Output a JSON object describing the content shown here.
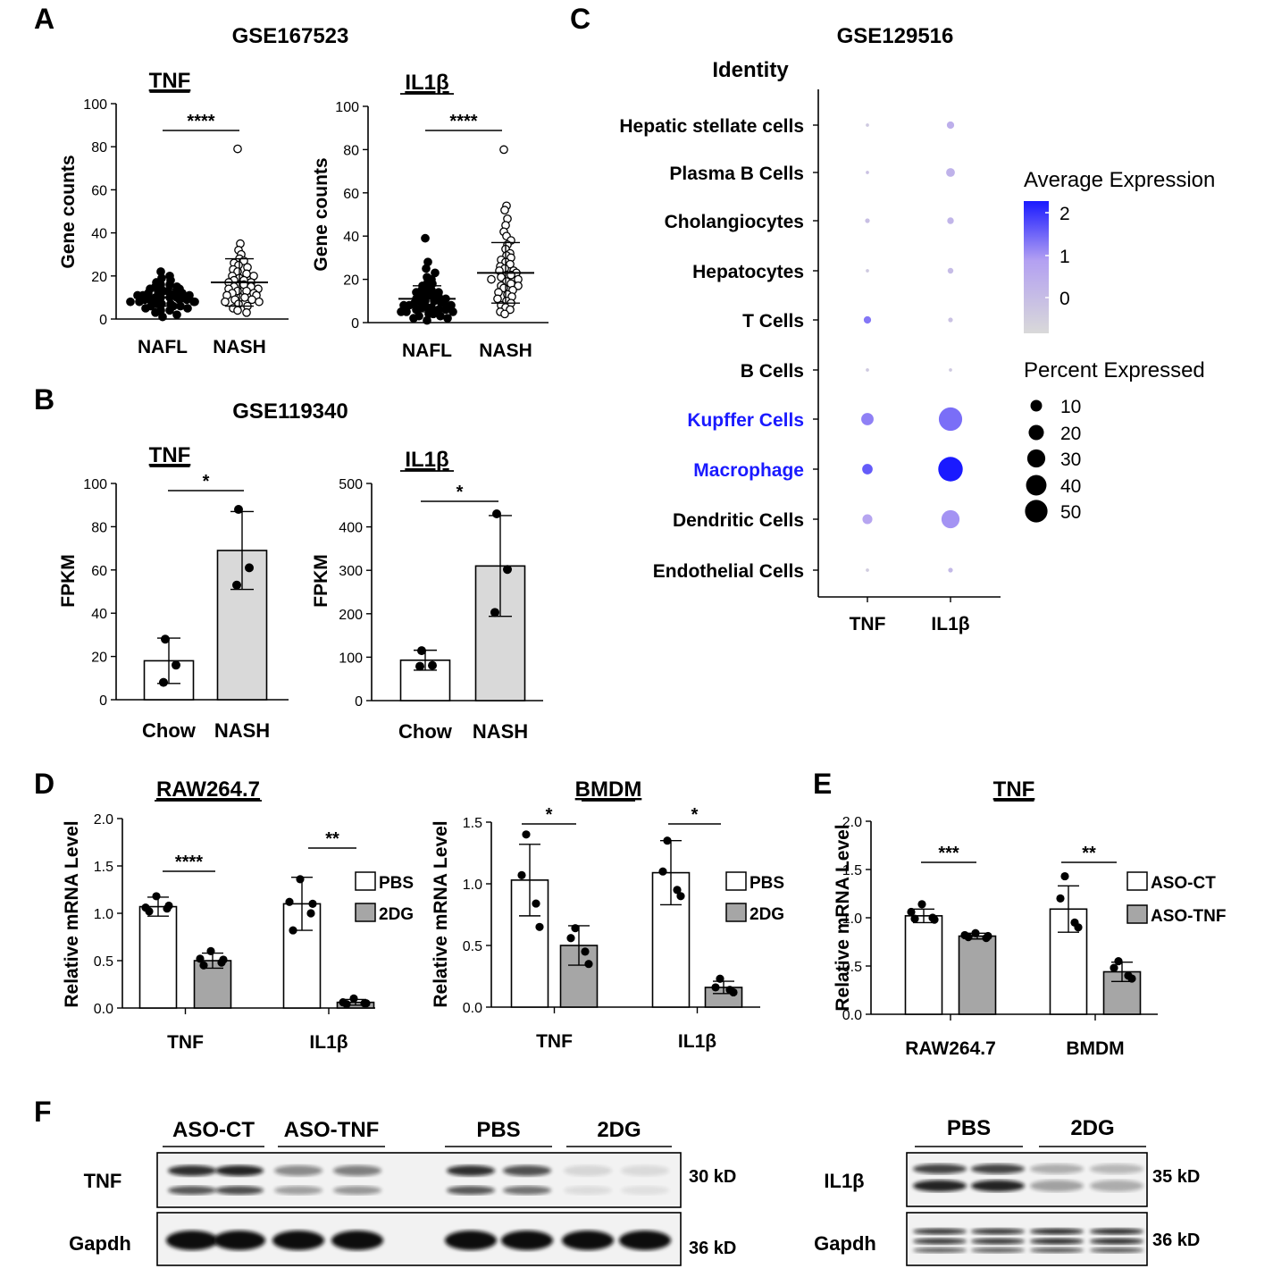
{
  "colors": {
    "bar_light": "#ffffff",
    "bar_gray": "#a6a6a6",
    "bar_gray_light": "#d9d9d9",
    "highlight_label": "#1a1aff",
    "dot_gradient": [
      "#d9d9d9",
      "#b3a0f2",
      "#1a1aff"
    ]
  },
  "panel_letters": [
    "A",
    "B",
    "C",
    "D",
    "E",
    "F"
  ],
  "chart_data": [
    {
      "id": "A-TNF",
      "panel": "A",
      "type": "scatter",
      "dataset": "GSE167523",
      "title": "TNF",
      "ylabel": "Gene counts",
      "ylim": [
        0,
        100
      ],
      "yticks": [
        "0",
        "20",
        "40",
        "60",
        "80",
        "100"
      ],
      "categories": [
        "NAFL",
        "NASH"
      ],
      "groups": [
        {
          "name": "NAFL",
          "filled": true,
          "mean": 10,
          "sd": 4,
          "points": [
            22,
            20,
            19,
            18,
            17,
            16,
            16,
            15,
            15,
            14,
            14,
            13,
            13,
            13,
            12,
            12,
            12,
            11,
            11,
            11,
            10,
            10,
            10,
            10,
            9,
            9,
            9,
            9,
            8,
            8,
            8,
            8,
            7,
            7,
            7,
            6,
            6,
            6,
            5,
            5,
            4,
            4,
            3,
            2,
            1
          ]
        },
        {
          "name": "NASH",
          "filled": false,
          "mean": 17,
          "sd": 11,
          "points": [
            79,
            35,
            32,
            30,
            28,
            27,
            26,
            25,
            24,
            23,
            22,
            21,
            20,
            20,
            19,
            18,
            18,
            17,
            17,
            16,
            16,
            15,
            15,
            14,
            14,
            13,
            13,
            12,
            12,
            11,
            11,
            10,
            10,
            9,
            9,
            8,
            8,
            7,
            6,
            5,
            4,
            3
          ]
        }
      ],
      "significance": "****"
    },
    {
      "id": "A-IL1B",
      "panel": "A",
      "type": "scatter",
      "title": "IL1β",
      "ylabel": "Gene counts",
      "ylim": [
        0,
        100
      ],
      "yticks": [
        "0",
        "20",
        "40",
        "60",
        "80",
        "100"
      ],
      "categories": [
        "NAFL",
        "NASH"
      ],
      "groups": [
        {
          "name": "NAFL",
          "filled": true,
          "mean": 11,
          "sd": 6,
          "points": [
            39,
            28,
            25,
            23,
            21,
            20,
            19,
            18,
            17,
            16,
            15,
            15,
            14,
            14,
            13,
            13,
            12,
            12,
            11,
            11,
            10,
            10,
            10,
            9,
            9,
            9,
            8,
            8,
            8,
            7,
            7,
            7,
            6,
            6,
            6,
            5,
            5,
            5,
            4,
            4,
            3,
            3,
            2,
            2,
            1
          ]
        },
        {
          "name": "NASH",
          "filled": false,
          "mean": 23,
          "sd": 14,
          "points": [
            80,
            54,
            52,
            48,
            45,
            42,
            40,
            38,
            36,
            34,
            32,
            31,
            30,
            29,
            28,
            27,
            26,
            25,
            24,
            24,
            23,
            22,
            22,
            21,
            20,
            20,
            19,
            18,
            17,
            17,
            16,
            15,
            14,
            13,
            12,
            11,
            10,
            9,
            8,
            7,
            6,
            5,
            4
          ]
        }
      ],
      "significance": "****"
    },
    {
      "id": "B-TNF",
      "panel": "B",
      "type": "bar",
      "dataset": "GSE119340",
      "title": "TNF",
      "ylabel": "FPKM",
      "ylim": [
        0,
        100
      ],
      "yticks": [
        "0",
        "20",
        "40",
        "60",
        "80",
        "100"
      ],
      "categories": [
        "Chow",
        "NASH"
      ],
      "values": [
        18,
        69
      ],
      "sd": [
        10.5,
        18
      ],
      "points": [
        [
          28,
          16,
          8
        ],
        [
          88,
          61,
          53
        ]
      ],
      "fills": [
        "#ffffff",
        "#d9d9d9"
      ],
      "significance": "*"
    },
    {
      "id": "B-IL1B",
      "panel": "B",
      "type": "bar",
      "title": "IL1β",
      "ylabel": "FPKM",
      "ylim": [
        0,
        500
      ],
      "yticks": [
        "0",
        "100",
        "200",
        "300",
        "400",
        "500"
      ],
      "categories": [
        "Chow",
        "NASH"
      ],
      "values": [
        93,
        310
      ],
      "sd": [
        23,
        116
      ],
      "points": [
        [
          115,
          81,
          79
        ],
        [
          430,
          302,
          203
        ]
      ],
      "fills": [
        "#ffffff",
        "#d9d9d9"
      ],
      "significance": "*"
    },
    {
      "id": "C",
      "panel": "C",
      "type": "dot",
      "dataset": "GSE129516",
      "ylabel": "Identity",
      "categories": [
        "TNF",
        "IL1β"
      ],
      "cell_types": [
        "Hepatic stellate cells",
        "Plasma B Cells",
        "Cholangiocytes",
        "Hepatocytes",
        "T Cells",
        "B Cells",
        "Kupffer Cells",
        "Macrophage",
        "Dendritic Cells",
        "Endothelial Cells"
      ],
      "highlighted": [
        "Kupffer Cells",
        "Macrophage"
      ],
      "avg_expression": [
        [
          -0.5,
          0.3
        ],
        [
          -0.3,
          0.2
        ],
        [
          -0.2,
          0.1
        ],
        [
          -0.5,
          -0.1
        ],
        [
          1.2,
          -0.3
        ],
        [
          -0.5,
          -0.5
        ],
        [
          1.1,
          1.3
        ],
        [
          1.5,
          2.2
        ],
        [
          0.6,
          0.9
        ],
        [
          -0.6,
          0.0
        ]
      ],
      "pct_expressed": [
        [
          1,
          5
        ],
        [
          1,
          7
        ],
        [
          2,
          4
        ],
        [
          1,
          3
        ],
        [
          5,
          2
        ],
        [
          1,
          1
        ],
        [
          14,
          50
        ],
        [
          10,
          55
        ],
        [
          9,
          30
        ],
        [
          1,
          2
        ]
      ],
      "color_legend_title": "Average Expression",
      "color_ticks": [
        "2",
        "1",
        "0"
      ],
      "color_range": [
        -1,
        2.2
      ],
      "size_legend_title": "Percent Expressed",
      "size_legend": [
        "10",
        "20",
        "30",
        "40",
        "50"
      ]
    },
    {
      "id": "D-RAW",
      "panel": "D",
      "type": "bar",
      "title": "RAW264.7",
      "ylabel": "Relative mRNA Level",
      "ylim": [
        0,
        2.0
      ],
      "yticks": [
        "0.0",
        "0.5",
        "1.0",
        "1.5",
        "2.0"
      ],
      "categories": [
        "TNF",
        "IL1β"
      ],
      "series": [
        {
          "name": "PBS",
          "fill": "#ffffff"
        },
        {
          "name": "2DG",
          "fill": "#a6a6a6"
        }
      ],
      "values": [
        [
          1.07,
          0.5
        ],
        [
          1.1,
          0.06
        ]
      ],
      "sd": [
        [
          0.1,
          0.08
        ],
        [
          0.28,
          0.03
        ]
      ],
      "points": [
        [
          [
            1.18,
            1.06,
            1.02,
            1.05,
            1.08
          ],
          [
            0.6,
            0.52,
            0.45,
            0.48,
            0.51
          ]
        ],
        [
          [
            1.36,
            1.12,
            0.82,
            1.0,
            1.1
          ],
          [
            0.1,
            0.06,
            0.04,
            0.05,
            0.05
          ]
        ]
      ],
      "significance": [
        "****",
        "**"
      ],
      "legend": [
        "PBS",
        "2DG"
      ]
    },
    {
      "id": "D-BMDM",
      "panel": "D",
      "type": "bar",
      "title": "BMDM",
      "ylabel": "Relative mRNA Level",
      "ylim": [
        0,
        1.5
      ],
      "yticks": [
        "0.0",
        "0.5",
        "1.0",
        "1.5"
      ],
      "categories": [
        "TNF",
        "IL1β"
      ],
      "series": [
        {
          "name": "PBS",
          "fill": "#ffffff"
        },
        {
          "name": "2DG",
          "fill": "#a6a6a6"
        }
      ],
      "values": [
        [
          1.03,
          0.5
        ],
        [
          1.09,
          0.16
        ]
      ],
      "sd": [
        [
          0.29,
          0.16
        ],
        [
          0.26,
          0.05
        ]
      ],
      "points": [
        [
          [
            1.4,
            1.07,
            0.84,
            0.65
          ],
          [
            0.64,
            0.56,
            0.45,
            0.35
          ]
        ],
        [
          [
            1.35,
            1.1,
            0.95,
            0.9
          ],
          [
            0.23,
            0.16,
            0.14,
            0.12
          ]
        ]
      ],
      "significance": [
        "*",
        "*"
      ],
      "legend": [
        "PBS",
        "2DG"
      ]
    },
    {
      "id": "E",
      "panel": "E",
      "type": "bar",
      "title": "TNF",
      "ylabel": "Relative mRNA Level",
      "ylim": [
        0,
        2.0
      ],
      "yticks": [
        "0.0",
        "0.5",
        "1.0",
        "1.5",
        "2.0"
      ],
      "categories": [
        "RAW264.7",
        "BMDM"
      ],
      "series": [
        {
          "name": "ASO-CT",
          "fill": "#ffffff"
        },
        {
          "name": "ASO-TNF",
          "fill": "#a6a6a6"
        }
      ],
      "values": [
        [
          1.02,
          0.81
        ],
        [
          1.09,
          0.44
        ]
      ],
      "sd": [
        [
          0.07,
          0.03
        ],
        [
          0.24,
          0.1
        ]
      ],
      "points": [
        [
          [
            1.14,
            1.06,
            0.99,
            1.0,
            0.98
          ],
          [
            0.84,
            0.82,
            0.8,
            0.79,
            0.81
          ]
        ],
        [
          [
            1.43,
            1.2,
            0.95,
            0.9
          ],
          [
            0.55,
            0.48,
            0.4,
            0.37
          ]
        ]
      ],
      "significance": [
        "***",
        "**"
      ],
      "legend": [
        "ASO-CT",
        "ASO-TNF"
      ]
    }
  ],
  "blots": {
    "left": {
      "groups": [
        "ASO-CT",
        "ASO-TNF",
        "PBS",
        "2DG"
      ],
      "rows": [
        {
          "label": "TNF",
          "kd": "30 kD"
        },
        {
          "label": "Gapdh",
          "kd": "36 kD"
        }
      ],
      "tnf_band_intensity": [
        0.85,
        0.9,
        0.45,
        0.5,
        0.85,
        0.7,
        0.12,
        0.1
      ],
      "gapdh_band_intensity": [
        1,
        1,
        1,
        1,
        1,
        1,
        1,
        1
      ]
    },
    "right": {
      "groups": [
        "PBS",
        "2DG"
      ],
      "rows": [
        {
          "label": "IL1β",
          "kd": "35 kD"
        },
        {
          "label": "Gapdh",
          "kd": "36 kD"
        }
      ],
      "il1b_band_intensity": [
        0.9,
        0.9,
        0.35,
        0.3
      ],
      "gapdh_band_intensity": [
        0.8,
        0.8,
        0.85,
        0.85
      ]
    }
  }
}
